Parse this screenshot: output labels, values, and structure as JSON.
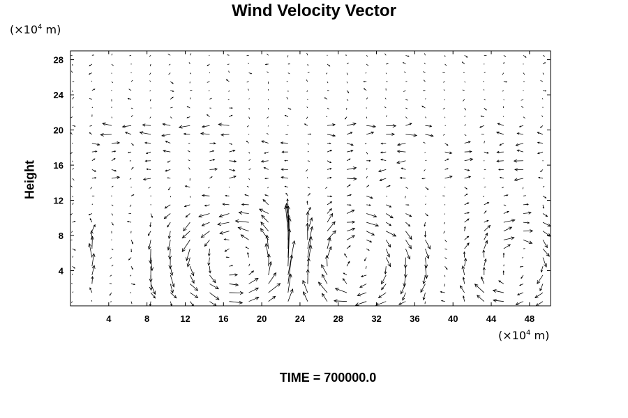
{
  "chart_data": {
    "type": "vector",
    "title": "Wind Velocity Vector",
    "y_unit": "(×10",
    "y_unit_sup": "4",
    "y_unit_tail": " m)",
    "x_unit": "(×10",
    "x_unit_sup": "4",
    "x_unit_tail": " m)",
    "ylabel": "Height",
    "xlabel": "",
    "footer": "TIME = 700000.0",
    "xlim": [
      0,
      50.2
    ],
    "ylim": [
      0,
      29
    ],
    "x_ticks": [
      4,
      8,
      12,
      16,
      20,
      24,
      28,
      32,
      36,
      40,
      44,
      48
    ],
    "y_ticks": [
      4,
      8,
      12,
      16,
      20,
      24,
      28
    ],
    "grid": {
      "x_start": 0.2,
      "x_step": 2.05,
      "x_count": 25,
      "y_start": 0,
      "y_step": 1.0,
      "y_count": 29
    },
    "features": {
      "jet_level": 20,
      "jet_segments": [
        {
          "x": [
            4,
            18
          ],
          "u": -0.9
        },
        {
          "x": [
            26,
            38
          ],
          "u": 0.9
        },
        {
          "x": [
            42,
            50
          ],
          "u": -0.6
        }
      ],
      "vortices": [
        {
          "cx": 17.5,
          "cy": 5.5,
          "rx": 5.5,
          "ry": 4.0,
          "strength": 1.0,
          "rotation": "counterclockwise"
        },
        {
          "cx": 29.5,
          "cy": 5.0,
          "rx": 5.0,
          "ry": 4.0,
          "strength": 0.9,
          "rotation": "clockwise"
        },
        {
          "cx": 46.5,
          "cy": 4.5,
          "rx": 4.0,
          "ry": 4.0,
          "strength": 0.8,
          "rotation": "clockwise"
        }
      ],
      "updrafts": [
        {
          "x": 2,
          "h": 10,
          "w": 0.8
        },
        {
          "x": 9,
          "h": 9,
          "w": -0.7
        },
        {
          "x": 22.5,
          "h": 11,
          "w": 1.0
        },
        {
          "x": 38,
          "h": 9,
          "w": -0.6
        }
      ]
    }
  }
}
